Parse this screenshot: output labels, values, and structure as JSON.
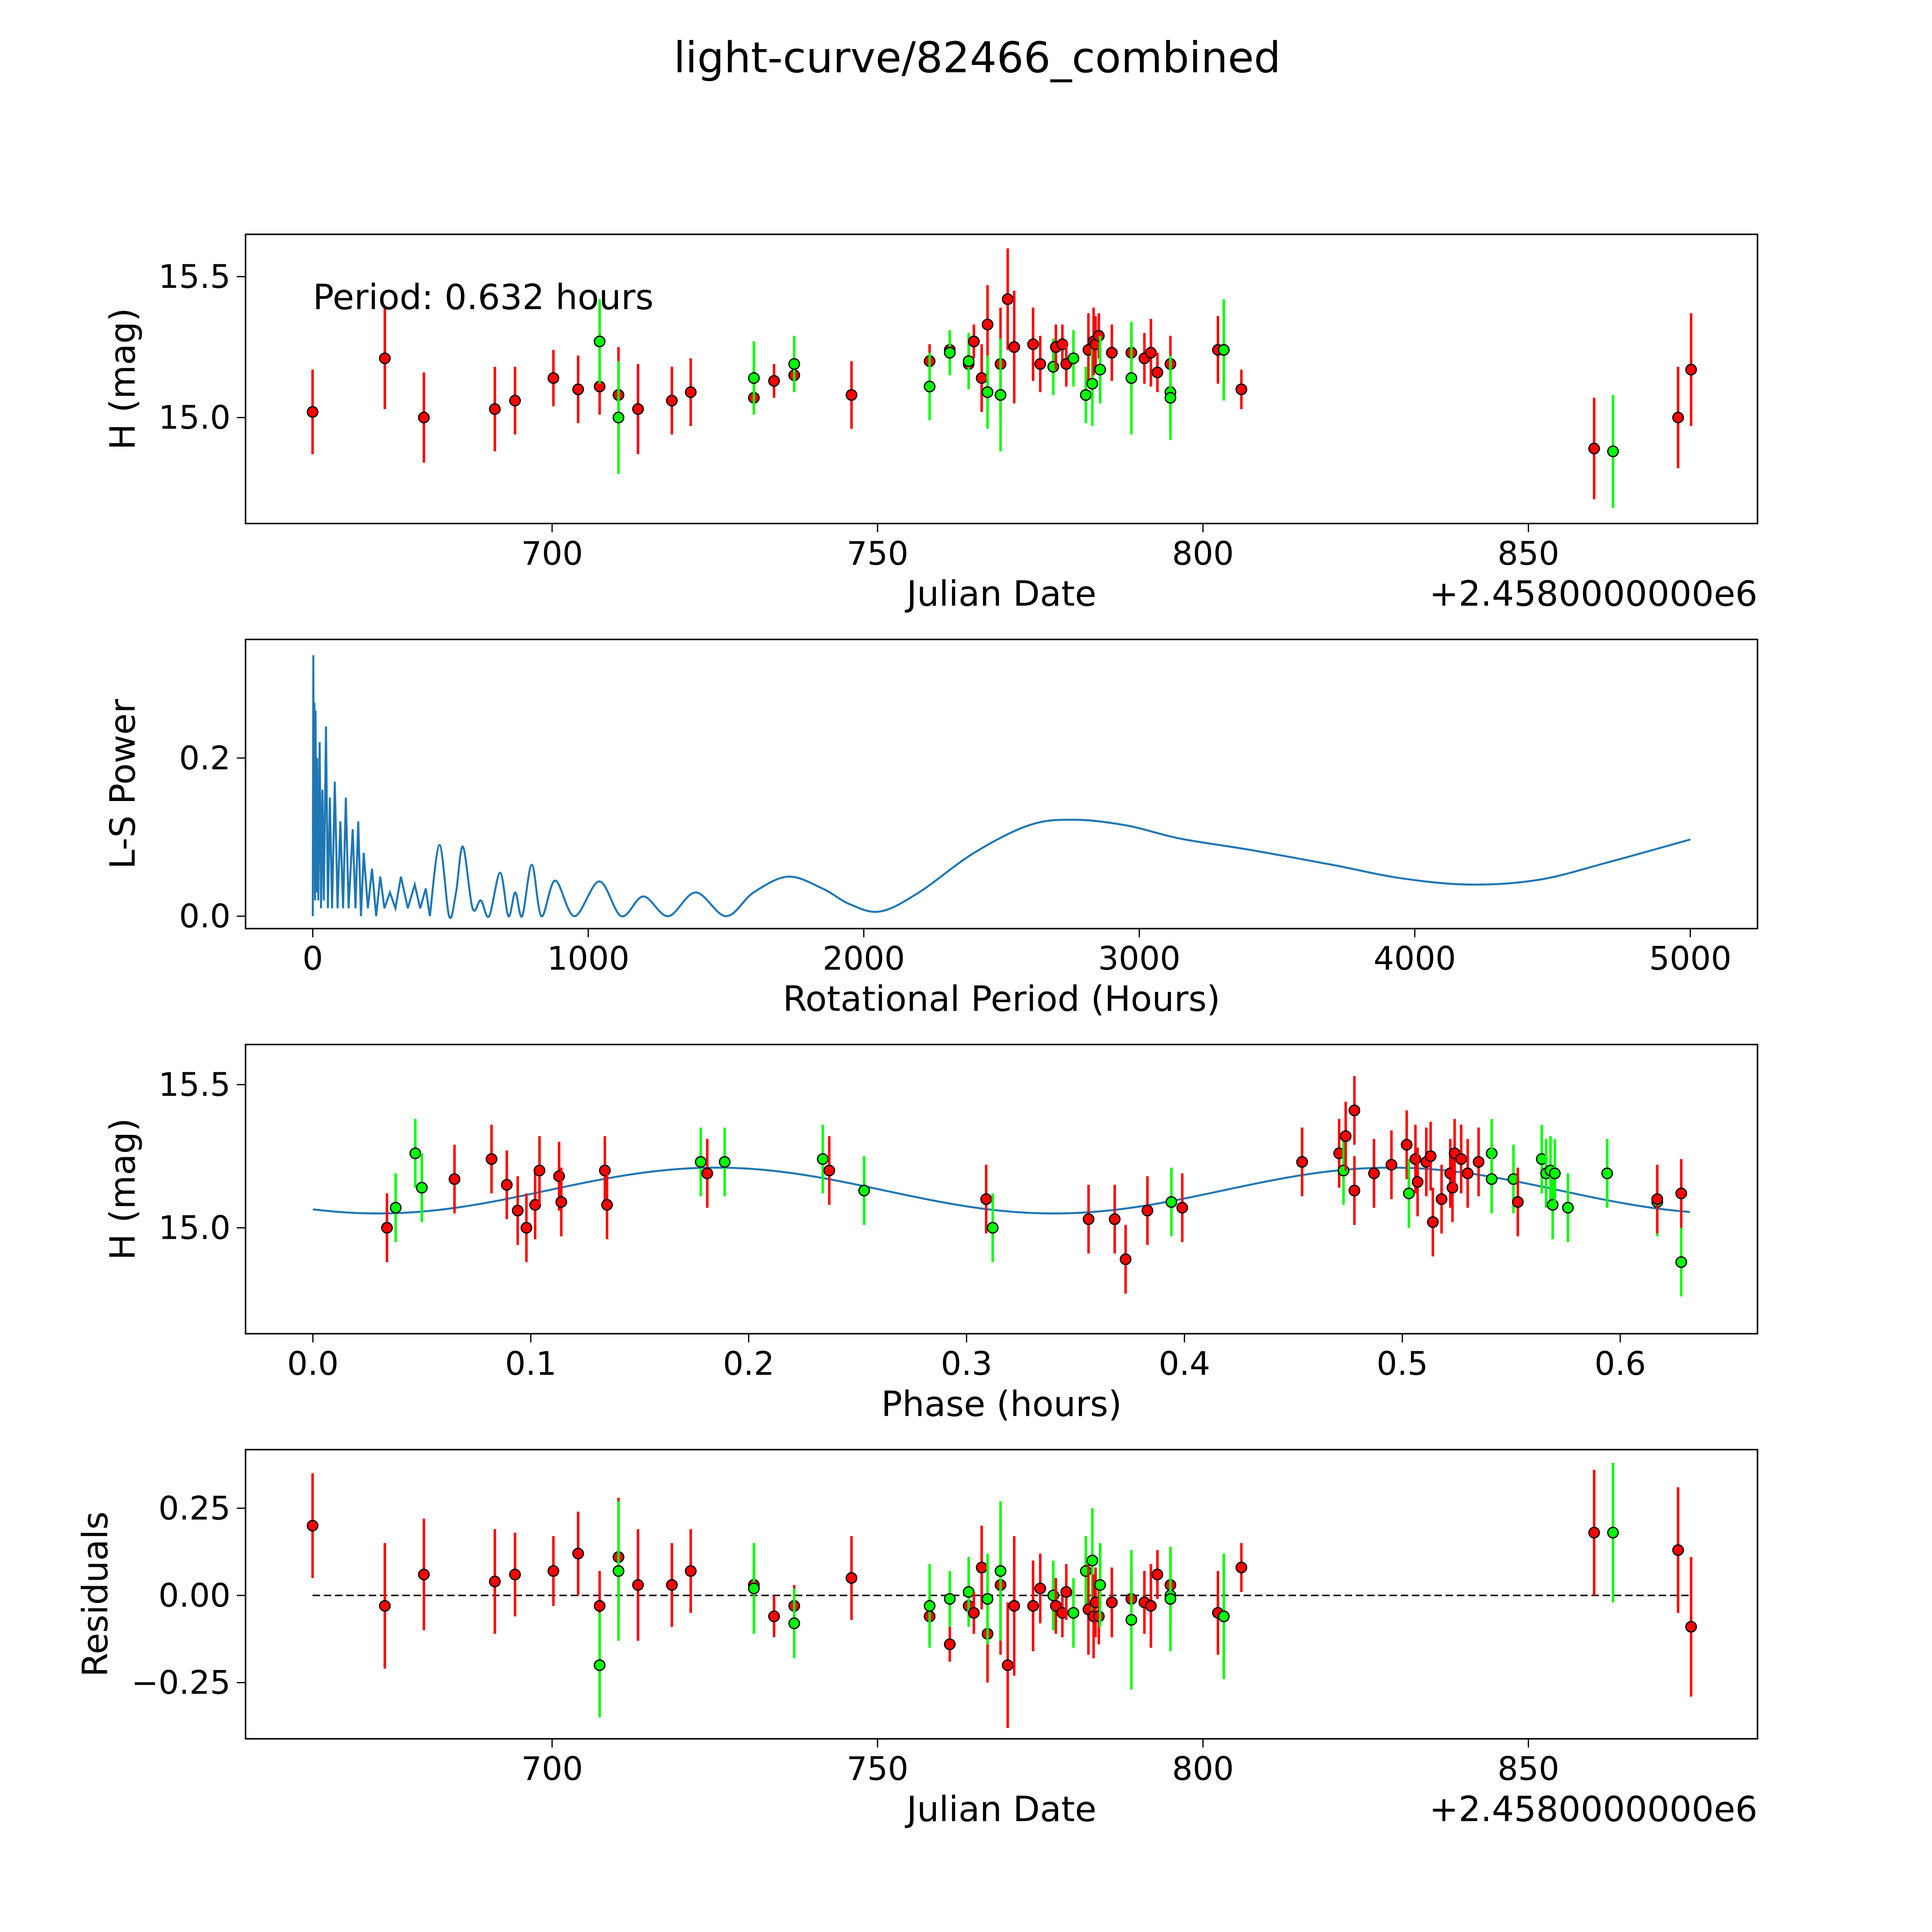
{
  "title": "light-curve/82466_combined",
  "colors": {
    "red": "#ff0000",
    "green": "#00ff00",
    "line": "#1f77b4",
    "edge": "#000000"
  },
  "chart_data": [
    {
      "id": "lightcurve",
      "type": "scatter",
      "xlabel": "Julian Date",
      "ylabel": "H (mag)",
      "offset_text": "+2.4580000000e6",
      "annotation": "Period: 0.632 hours",
      "xlim": [
        652.9,
        885.2
      ],
      "ylim": [
        14.624,
        15.65
      ],
      "xticks": [
        700,
        750,
        800,
        850
      ],
      "xtick_labels": [
        "700",
        "750",
        "800",
        "850"
      ],
      "yticks": [
        15.0,
        15.5
      ],
      "ytick_labels": [
        "15.0",
        "15.5"
      ],
      "points": [
        [
          663.2,
          15.02,
          "r",
          0.15
        ],
        [
          674.3,
          15.21,
          "r",
          0.18
        ],
        [
          680.3,
          15.0,
          "r",
          0.16
        ],
        [
          691.2,
          15.03,
          "r",
          0.15
        ],
        [
          694.3,
          15.06,
          "r",
          0.12
        ],
        [
          700.2,
          15.14,
          "r",
          0.1
        ],
        [
          704.0,
          15.1,
          "r",
          0.12
        ],
        [
          707.3,
          15.11,
          "r",
          0.1
        ],
        [
          707.3,
          15.27,
          "g",
          0.15
        ],
        [
          710.2,
          15.08,
          "r",
          0.17
        ],
        [
          710.2,
          15.0,
          "g",
          0.2
        ],
        [
          713.2,
          15.03,
          "r",
          0.16
        ],
        [
          718.4,
          15.06,
          "r",
          0.12
        ],
        [
          721.3,
          15.09,
          "r",
          0.12
        ],
        [
          731.0,
          15.07,
          "r",
          0.05
        ],
        [
          731.0,
          15.14,
          "g",
          0.13
        ],
        [
          734.1,
          15.13,
          "r",
          0.06
        ],
        [
          737.2,
          15.15,
          "r",
          0.06
        ],
        [
          737.2,
          15.19,
          "g",
          0.1
        ],
        [
          746.0,
          15.08,
          "r",
          0.12
        ],
        [
          758.0,
          15.2,
          "r",
          0.06
        ],
        [
          758.0,
          15.11,
          "g",
          0.12
        ],
        [
          761.1,
          15.24,
          "r",
          0.05
        ],
        [
          761.1,
          15.23,
          "g",
          0.08
        ],
        [
          764.0,
          15.19,
          "r",
          0.04
        ],
        [
          764.0,
          15.2,
          "g",
          0.1
        ],
        [
          764.8,
          15.27,
          "r",
          0.06
        ],
        [
          766.0,
          15.14,
          "r",
          0.12
        ],
        [
          766.9,
          15.33,
          "r",
          0.14
        ],
        [
          766.9,
          15.09,
          "g",
          0.13
        ],
        [
          768.9,
          15.19,
          "r",
          0.2
        ],
        [
          768.9,
          15.08,
          "g",
          0.2
        ],
        [
          770.0,
          15.42,
          "r",
          0.18
        ],
        [
          771.0,
          15.25,
          "r",
          0.2
        ],
        [
          773.9,
          15.26,
          "r",
          0.13
        ],
        [
          775.0,
          15.19,
          "r",
          0.1
        ],
        [
          777.0,
          15.18,
          "g",
          0.1
        ],
        [
          777.4,
          15.25,
          "r",
          0.08
        ],
        [
          778.4,
          15.26,
          "r",
          0.07
        ],
        [
          779.0,
          15.19,
          "r",
          0.08
        ],
        [
          780.1,
          15.21,
          "g",
          0.1
        ],
        [
          782.0,
          15.08,
          "g",
          0.1
        ],
        [
          782.4,
          15.24,
          "r",
          0.13
        ],
        [
          783.0,
          15.12,
          "g",
          0.15
        ],
        [
          783.2,
          15.27,
          "r",
          0.12
        ],
        [
          783.5,
          15.26,
          "r",
          0.1
        ],
        [
          784.0,
          15.29,
          "r",
          0.08
        ],
        [
          784.2,
          15.17,
          "g",
          0.12
        ],
        [
          786.0,
          15.23,
          "r",
          0.1
        ],
        [
          789.0,
          15.23,
          "r",
          0.08
        ],
        [
          789.0,
          15.14,
          "g",
          0.2
        ],
        [
          791.0,
          15.21,
          "r",
          0.09
        ],
        [
          792.0,
          15.23,
          "r",
          0.12
        ],
        [
          793.0,
          15.16,
          "r",
          0.07
        ],
        [
          795.0,
          15.19,
          "r",
          0.1
        ],
        [
          795.0,
          15.09,
          "g",
          0.12
        ],
        [
          795.0,
          15.07,
          "g",
          0.15
        ],
        [
          802.3,
          15.24,
          "r",
          0.12
        ],
        [
          803.2,
          15.24,
          "g",
          0.18
        ],
        [
          805.9,
          15.1,
          "r",
          0.07
        ],
        [
          860.1,
          14.89,
          "r",
          0.18
        ],
        [
          863.0,
          14.88,
          "g",
          0.2
        ],
        [
          873.0,
          15.0,
          "r",
          0.18
        ],
        [
          875.0,
          15.17,
          "r",
          0.2
        ]
      ]
    },
    {
      "id": "periodogram",
      "type": "line",
      "xlabel": "Rotational Period (Hours)",
      "ylabel": "L-S Power",
      "xlim": [
        -244,
        5244
      ],
      "ylim": [
        -0.0157,
        0.35
      ],
      "xticks": [
        0,
        1000,
        2000,
        3000,
        4000,
        5000
      ],
      "xtick_labels": [
        "0",
        "1000",
        "2000",
        "3000",
        "4000",
        "5000"
      ],
      "yticks": [
        0.0,
        0.2
      ],
      "ytick_labels": [
        "0.0",
        "0.2"
      ],
      "spiky": [
        [
          0,
          0
        ],
        [
          2,
          0.33
        ],
        [
          4,
          0.05
        ],
        [
          6,
          0.27
        ],
        [
          8,
          0.02
        ],
        [
          10,
          0.26
        ],
        [
          13,
          0.03
        ],
        [
          16,
          0.2
        ],
        [
          20,
          0.02
        ],
        [
          25,
          0.22
        ],
        [
          30,
          0.01
        ],
        [
          35,
          0.16
        ],
        [
          40,
          0.02
        ],
        [
          48,
          0.24
        ],
        [
          55,
          0.01
        ],
        [
          62,
          0.15
        ],
        [
          70,
          0.01
        ],
        [
          80,
          0.17
        ],
        [
          90,
          0.01
        ],
        [
          100,
          0.12
        ],
        [
          110,
          0.01
        ],
        [
          120,
          0.15
        ],
        [
          130,
          0.01
        ],
        [
          145,
          0.11
        ],
        [
          155,
          0.01
        ],
        [
          165,
          0.12
        ],
        [
          175,
          0.0
        ],
        [
          185,
          0.08
        ],
        [
          200,
          0.01
        ],
        [
          215,
          0.06
        ],
        [
          230,
          0.0
        ],
        [
          245,
          0.05
        ],
        [
          260,
          0.01
        ],
        [
          280,
          0.03
        ],
        [
          300,
          0.01
        ],
        [
          320,
          0.05
        ],
        [
          345,
          0.01
        ],
        [
          370,
          0.04
        ],
        [
          390,
          0.01
        ],
        [
          410,
          0.035
        ],
        [
          425,
          0.0
        ]
      ],
      "smooth": [
        [
          425,
          0.0
        ],
        [
          460,
          0.09
        ],
        [
          495,
          0.0
        ],
        [
          520,
          0.03
        ],
        [
          545,
          0.088
        ],
        [
          580,
          0.01
        ],
        [
          610,
          0.02
        ],
        [
          640,
          0.0
        ],
        [
          680,
          0.055
        ],
        [
          710,
          0.0
        ],
        [
          735,
          0.03
        ],
        [
          760,
          0.0
        ],
        [
          795,
          0.065
        ],
        [
          830,
          0.0
        ],
        [
          880,
          0.045
        ],
        [
          950,
          0.0
        ],
        [
          1040,
          0.044
        ],
        [
          1120,
          0.0
        ],
        [
          1200,
          0.025
        ],
        [
          1290,
          0.0
        ],
        [
          1390,
          0.03
        ],
        [
          1500,
          0.0
        ],
        [
          1600,
          0.03
        ],
        [
          1725,
          0.05
        ],
        [
          1850,
          0.035
        ],
        [
          1950,
          0.015
        ],
        [
          2060,
          0.006
        ],
        [
          2200,
          0.03
        ],
        [
          2400,
          0.08
        ],
        [
          2600,
          0.115
        ],
        [
          2760,
          0.122
        ],
        [
          2950,
          0.115
        ],
        [
          3150,
          0.098
        ],
        [
          3400,
          0.084
        ],
        [
          3700,
          0.065
        ],
        [
          3950,
          0.048
        ],
        [
          4200,
          0.04
        ],
        [
          4450,
          0.046
        ],
        [
          4700,
          0.068
        ],
        [
          5000,
          0.097
        ]
      ]
    },
    {
      "id": "phased",
      "type": "scatter",
      "xlabel": "Phase (hours)",
      "ylabel": "H (mag)",
      "xlim": [
        -0.0309,
        0.663
      ],
      "ylim": [
        14.63,
        15.64
      ],
      "xticks": [
        0.0,
        0.1,
        0.2,
        0.3,
        0.4,
        0.5,
        0.6
      ],
      "xtick_labels": [
        "0.0",
        "0.1",
        "0.2",
        "0.3",
        "0.4",
        "0.5",
        "0.6"
      ],
      "yticks": [
        15.0,
        15.5
      ],
      "ytick_labels": [
        "15.0",
        "15.5"
      ],
      "model": {
        "mean": 15.13,
        "amplitude": 0.08,
        "phase_min": 0.03,
        "cycle": 0.31,
        "range": [
          0,
          0.632
        ]
      },
      "points": [
        [
          0.034,
          15.0,
          "r"
        ],
        [
          0.038,
          15.07,
          "g"
        ],
        [
          0.047,
          15.26,
          "g"
        ],
        [
          0.05,
          15.14,
          "g"
        ],
        [
          0.065,
          15.17,
          "r"
        ],
        [
          0.082,
          15.24,
          "r"
        ],
        [
          0.089,
          15.15,
          "r"
        ],
        [
          0.094,
          15.06,
          "r"
        ],
        [
          0.098,
          15.0,
          "r"
        ],
        [
          0.102,
          15.08,
          "r"
        ],
        [
          0.104,
          15.2,
          "r"
        ],
        [
          0.113,
          15.18,
          "r"
        ],
        [
          0.114,
          15.09,
          "r"
        ],
        [
          0.134,
          15.2,
          "r"
        ],
        [
          0.135,
          15.08,
          "r"
        ],
        [
          0.178,
          15.23,
          "g"
        ],
        [
          0.181,
          15.19,
          "r"
        ],
        [
          0.189,
          15.23,
          "g"
        ],
        [
          0.234,
          15.24,
          "g"
        ],
        [
          0.237,
          15.2,
          "r"
        ],
        [
          0.253,
          15.13,
          "g"
        ],
        [
          0.309,
          15.1,
          "r"
        ],
        [
          0.312,
          15.0,
          "g"
        ],
        [
          0.356,
          15.03,
          "r"
        ],
        [
          0.368,
          15.03,
          "r"
        ],
        [
          0.373,
          14.89,
          "r"
        ],
        [
          0.383,
          15.06,
          "r"
        ],
        [
          0.394,
          15.09,
          "g"
        ],
        [
          0.399,
          15.07,
          "r"
        ],
        [
          0.454,
          15.23,
          "r"
        ],
        [
          0.471,
          15.26,
          "r"
        ],
        [
          0.473,
          15.2,
          "g"
        ],
        [
          0.474,
          15.32,
          "r"
        ],
        [
          0.478,
          15.41,
          "r"
        ],
        [
          0.478,
          15.13,
          "r"
        ],
        [
          0.487,
          15.19,
          "r"
        ],
        [
          0.495,
          15.22,
          "r"
        ],
        [
          0.502,
          15.29,
          "r"
        ],
        [
          0.503,
          15.12,
          "g"
        ],
        [
          0.506,
          15.24,
          "r"
        ],
        [
          0.507,
          15.16,
          "r"
        ],
        [
          0.511,
          15.23,
          "r"
        ],
        [
          0.513,
          15.25,
          "r"
        ],
        [
          0.514,
          15.02,
          "r"
        ],
        [
          0.518,
          15.1,
          "r"
        ],
        [
          0.522,
          15.19,
          "r"
        ],
        [
          0.523,
          15.14,
          "r"
        ],
        [
          0.524,
          15.26,
          "r"
        ],
        [
          0.527,
          15.24,
          "r"
        ],
        [
          0.53,
          15.19,
          "r"
        ],
        [
          0.535,
          15.23,
          "r"
        ],
        [
          0.541,
          15.26,
          "g"
        ],
        [
          0.541,
          15.17,
          "g"
        ],
        [
          0.551,
          15.17,
          "g"
        ],
        [
          0.553,
          15.09,
          "r"
        ],
        [
          0.564,
          15.24,
          "g"
        ],
        [
          0.566,
          15.19,
          "g"
        ],
        [
          0.568,
          15.2,
          "g"
        ],
        [
          0.569,
          15.08,
          "g"
        ],
        [
          0.57,
          15.19,
          "g"
        ],
        [
          0.576,
          15.07,
          "g"
        ],
        [
          0.594,
          15.19,
          "g"
        ],
        [
          0.617,
          15.09,
          "g"
        ],
        [
          0.617,
          15.1,
          "r"
        ],
        [
          0.628,
          15.12,
          "r"
        ],
        [
          0.628,
          14.88,
          "g"
        ]
      ]
    },
    {
      "id": "residuals",
      "type": "scatter",
      "xlabel": "Julian Date",
      "ylabel": "Residuals",
      "offset_text": "+2.4580000000e6",
      "xlim": [
        652.9,
        885.2
      ],
      "ylim": [
        -0.411,
        0.418
      ],
      "xticks": [
        700,
        750,
        800,
        850
      ],
      "xtick_labels": [
        "700",
        "750",
        "800",
        "850"
      ],
      "yticks": [
        -0.25,
        0.0,
        0.25
      ],
      "ytick_labels": [
        "−0.25",
        "0.00",
        "0.25"
      ],
      "zero_line": [
        663.2,
        875.0
      ],
      "values": [
        0.2,
        -0.03,
        0.06,
        0.04,
        0.06,
        0.07,
        0.12,
        -0.03,
        -0.2,
        0.11,
        0.07,
        0.03,
        0.03,
        0.07,
        0.03,
        0.02,
        -0.06,
        -0.03,
        -0.08,
        0.05,
        -0.06,
        -0.03,
        -0.14,
        -0.01,
        -0.03,
        0.01,
        -0.05,
        0.08,
        -0.11,
        -0.01,
        0.03,
        0.07,
        -0.2,
        -0.03,
        -0.03,
        0.02,
        0.0,
        -0.03,
        -0.05,
        0.01,
        -0.05,
        0.07,
        -0.04,
        0.1,
        -0.06,
        -0.02,
        -0.06,
        0.03,
        -0.02,
        -0.01,
        -0.07,
        -0.02,
        -0.03,
        0.06,
        0.03,
        0.0,
        -0.01,
        -0.05,
        -0.06,
        0.08,
        0.18,
        0.18,
        0.13,
        -0.09
      ]
    }
  ]
}
